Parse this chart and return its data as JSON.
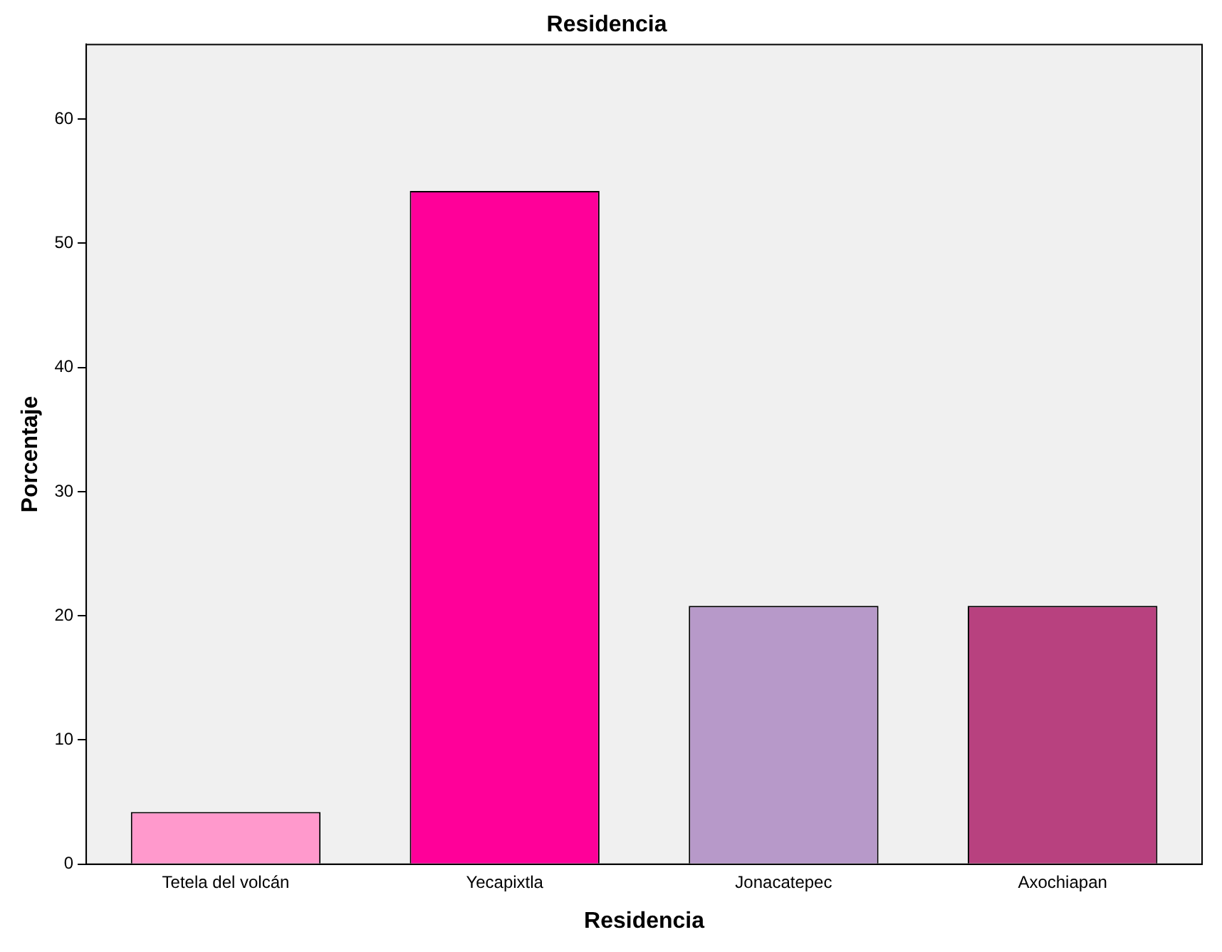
{
  "chart_data": {
    "type": "bar",
    "title": "Residencia",
    "xlabel": "Residencia",
    "ylabel": "Porcentaje",
    "categories": [
      "Tetela del volcán",
      "Yecapixtla",
      "Jonacatepec",
      "Axochiapan"
    ],
    "values": [
      4.2,
      54.2,
      20.8,
      20.8
    ],
    "colors": [
      "#ff99cc",
      "#ff0099",
      "#b799c9",
      "#b8417f"
    ],
    "ylim": [
      0,
      66
    ],
    "yticks": [
      0,
      10,
      20,
      30,
      40,
      50,
      60
    ],
    "grid": false,
    "legend": false
  }
}
